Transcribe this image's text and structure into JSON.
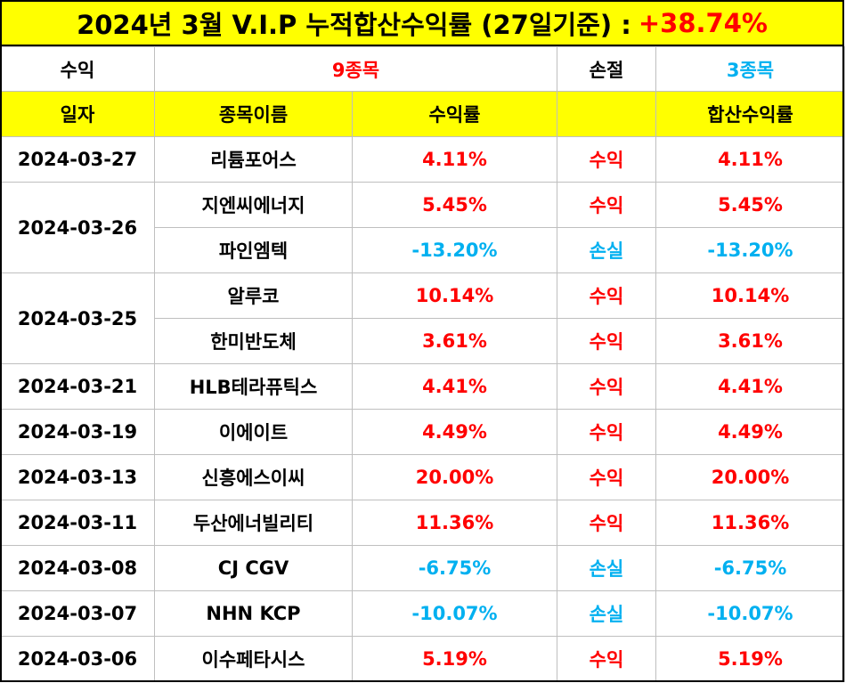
{
  "title": {
    "text": "2024년 3월 V.I.P 누적합산수익률 (27일기준) :",
    "total": "+38.74%"
  },
  "summary": {
    "profit_label": "수익",
    "profit_count": "9종목",
    "loss_label": "손절",
    "loss_count": "3종목"
  },
  "headers": [
    "일자",
    "종목이름",
    "수익률",
    "",
    "합산수익률"
  ],
  "groups": [
    {
      "date": "2024-03-27",
      "rows": [
        {
          "name": "리튬포어스",
          "rate": "4.11%",
          "status": "수익",
          "total": "4.11%",
          "type": "gain"
        }
      ]
    },
    {
      "date": "2024-03-26",
      "rows": [
        {
          "name": "지엔씨에너지",
          "rate": "5.45%",
          "status": "수익",
          "total": "5.45%",
          "type": "gain"
        },
        {
          "name": "파인엠텍",
          "rate": "-13.20%",
          "status": "손실",
          "total": "-13.20%",
          "type": "loss"
        }
      ]
    },
    {
      "date": "2024-03-25",
      "rows": [
        {
          "name": "알루코",
          "rate": "10.14%",
          "status": "수익",
          "total": "10.14%",
          "type": "gain"
        },
        {
          "name": "한미반도체",
          "rate": "3.61%",
          "status": "수익",
          "total": "3.61%",
          "type": "gain"
        }
      ]
    },
    {
      "date": "2024-03-21",
      "rows": [
        {
          "name": "HLB테라퓨틱스",
          "rate": "4.41%",
          "status": "수익",
          "total": "4.41%",
          "type": "gain"
        }
      ]
    },
    {
      "date": "2024-03-19",
      "rows": [
        {
          "name": "이에이트",
          "rate": "4.49%",
          "status": "수익",
          "total": "4.49%",
          "type": "gain"
        }
      ]
    },
    {
      "date": "2024-03-13",
      "rows": [
        {
          "name": "신흥에스이씨",
          "rate": "20.00%",
          "status": "수익",
          "total": "20.00%",
          "type": "gain"
        }
      ]
    },
    {
      "date": "2024-03-11",
      "rows": [
        {
          "name": "두산에너빌리티",
          "rate": "11.36%",
          "status": "수익",
          "total": "11.36%",
          "type": "gain"
        }
      ]
    },
    {
      "date": "2024-03-08",
      "rows": [
        {
          "name": "CJ CGV",
          "rate": "-6.75%",
          "status": "손실",
          "total": "-6.75%",
          "type": "loss"
        }
      ]
    },
    {
      "date": "2024-03-07",
      "rows": [
        {
          "name": "NHN KCP",
          "rate": "-10.07%",
          "status": "손실",
          "total": "-10.07%",
          "type": "loss"
        }
      ]
    },
    {
      "date": "2024-03-06",
      "rows": [
        {
          "name": "이수페타시스",
          "rate": "5.19%",
          "status": "수익",
          "total": "5.19%",
          "type": "gain"
        }
      ]
    }
  ],
  "colors": {
    "header_bg": "#ffff00",
    "gain": "#ff0000",
    "loss": "#00b0f0"
  }
}
